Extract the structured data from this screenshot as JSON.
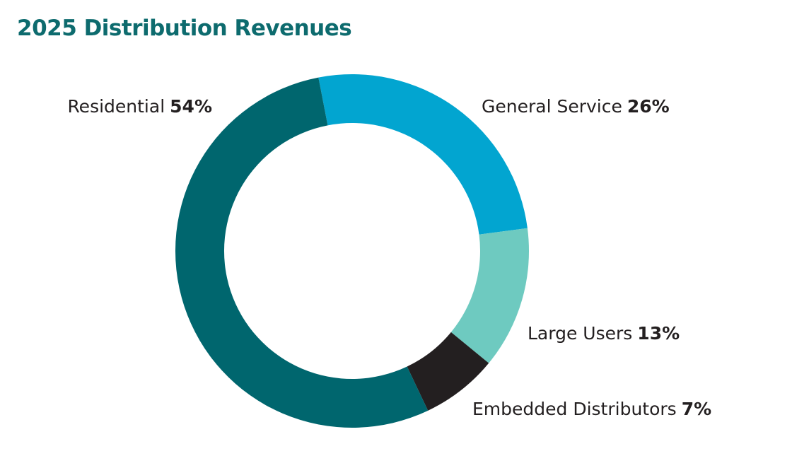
{
  "chart_data": {
    "type": "pie",
    "title": "2025 Distribution Revenues",
    "slices": [
      {
        "label": "Residential",
        "percent_label": "54%",
        "value": 54,
        "color": "#00666e"
      },
      {
        "label": "General Service",
        "percent_label": "26%",
        "value": 26,
        "color": "#02a5d0"
      },
      {
        "label": "Large Users",
        "percent_label": "13%",
        "value": 13,
        "color": "#6ecac0"
      },
      {
        "label": "Embedded Distributors",
        "percent_label": "7%",
        "value": 7,
        "color": "#231f20"
      }
    ]
  }
}
